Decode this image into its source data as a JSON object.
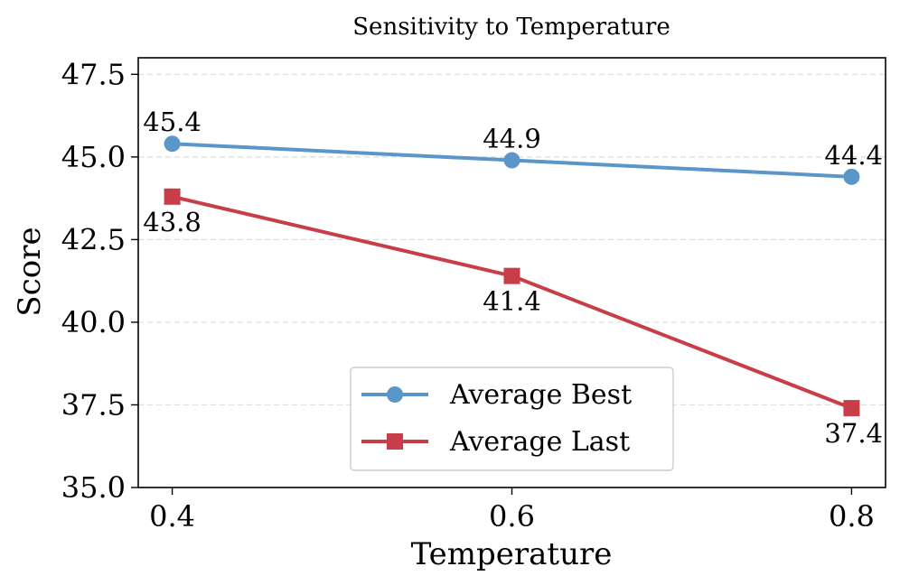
{
  "chart_data": {
    "type": "line",
    "title": "Sensitivity to Temperature",
    "xlabel": "Temperature",
    "ylabel": "Score",
    "x": [
      0.4,
      0.6,
      0.8
    ],
    "x_tick_labels": [
      "0.4",
      "0.6",
      "0.8"
    ],
    "xlim": [
      0.38,
      0.82
    ],
    "ylim": [
      35.0,
      48.0
    ],
    "y_ticks": [
      35.0,
      37.5,
      40.0,
      42.5,
      45.0,
      47.5
    ],
    "y_tick_labels": [
      "35.0",
      "37.5",
      "40.0",
      "42.5",
      "45.0",
      "47.5"
    ],
    "grid": "horizontal-dashed",
    "legend_placement": "lower-center",
    "series": [
      {
        "name": "Average Best",
        "color": "#5b96cb",
        "marker": "circle",
        "values": [
          45.4,
          44.9,
          44.4
        ],
        "value_labels": [
          "45.4",
          "44.9",
          "44.4"
        ],
        "label_position": "above"
      },
      {
        "name": "Average Last",
        "color": "#c73e48",
        "marker": "square",
        "values": [
          43.8,
          41.4,
          37.4
        ],
        "value_labels": [
          "43.8",
          "41.4",
          "37.4"
        ],
        "label_position": "below"
      }
    ]
  }
}
